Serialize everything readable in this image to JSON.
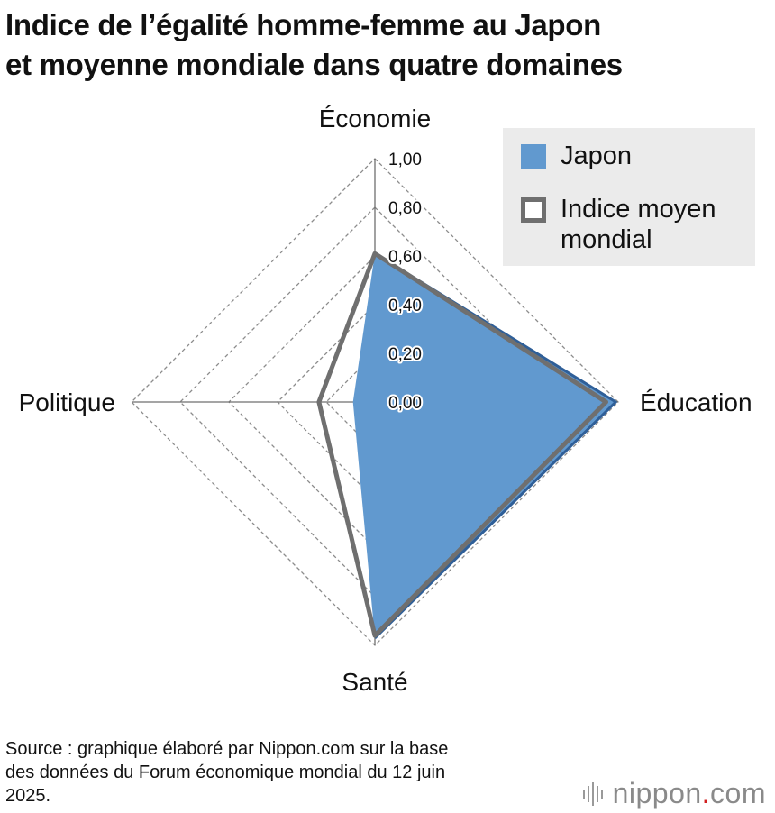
{
  "chart_data": {
    "type": "radar",
    "title_lines": [
      "Indice de l’égalité homme-femme au Japon",
      "et moyenne mondiale dans quatre domaines"
    ],
    "axes": [
      "Économie",
      "Éducation",
      "Santé",
      "Politique"
    ],
    "tick_labels": [
      "1,00",
      "0,80",
      "0,60",
      "0,40",
      "0,20",
      "0,00"
    ],
    "range": [
      0,
      1
    ],
    "grid_steps": 5,
    "series": [
      {
        "name": "Japon",
        "values": [
          0.61,
          0.99,
          0.97,
          0.09
        ],
        "color": "#6199cf",
        "style": "filled"
      },
      {
        "name": "Indice moyen mondial",
        "values": [
          0.61,
          0.95,
          0.96,
          0.23
        ],
        "color": "#6f6f6f",
        "style": "outline"
      }
    ],
    "legend_position": "top-right"
  },
  "legend": {
    "japan": "Japon",
    "world_line1": "Indice moyen",
    "world_line2": "mondial"
  },
  "source": {
    "line1": "Source : graphique élaboré par Nippon.com sur la base",
    "line2": "des données du Forum économique mondial du 12 juin",
    "line3": "2025."
  },
  "logo": {
    "prefix": "nippon",
    "dot": ".",
    "suffix": "com"
  },
  "colors": {
    "japan_fill": "#6199cf",
    "japan_edge": "#2f5f98",
    "world_line": "#6f6f6f",
    "grid": "#8c8c8c"
  }
}
